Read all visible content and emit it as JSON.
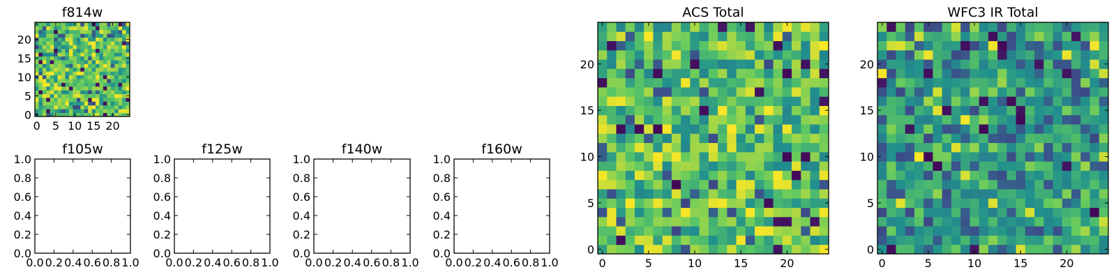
{
  "figure": {
    "colormap": "viridis",
    "colormap_stops": [
      "#440154",
      "#3b528b",
      "#21908d",
      "#5dc962",
      "#fde725"
    ]
  },
  "chart_data": [
    {
      "type": "heatmap",
      "id": "f814w",
      "title": "f814w",
      "xlim": [
        -0.5,
        24.5
      ],
      "ylim": [
        -0.5,
        24.5
      ],
      "xticks": [
        0,
        5,
        10,
        15,
        20
      ],
      "yticks": [
        0,
        5,
        10,
        15,
        20
      ],
      "xtick_labels": [
        "0",
        "5",
        "10",
        "15",
        "20"
      ],
      "ytick_labels": [
        "0",
        "5",
        "10",
        "15",
        "20"
      ],
      "grid_size": 25,
      "seed": 11,
      "value_profile": "bright"
    },
    {
      "type": "empty",
      "id": "f105w",
      "title": "f105w",
      "xlim": [
        0,
        1
      ],
      "ylim": [
        0,
        1
      ],
      "xtick_labels": [
        "0.0",
        "0.2",
        "0.4",
        "0.6",
        "0.8",
        "1.0"
      ],
      "ytick_labels": [
        "0.0",
        "0.2",
        "0.4",
        "0.6",
        "0.8",
        "1.0"
      ]
    },
    {
      "type": "empty",
      "id": "f125w",
      "title": "f125w",
      "xlim": [
        0,
        1
      ],
      "ylim": [
        0,
        1
      ],
      "xtick_labels": [
        "0.0",
        "0.2",
        "0.4",
        "0.6",
        "0.8",
        "1.0"
      ],
      "ytick_labels": [
        "0.0",
        "0.2",
        "0.4",
        "0.6",
        "0.8",
        "1.0"
      ]
    },
    {
      "type": "empty",
      "id": "f140w",
      "title": "f140w",
      "xlim": [
        0,
        1
      ],
      "ylim": [
        0,
        1
      ],
      "xtick_labels": [
        "0.0",
        "0.2",
        "0.4",
        "0.6",
        "0.8",
        "1.0"
      ],
      "ytick_labels": [
        "0.0",
        "0.2",
        "0.4",
        "0.6",
        "0.8",
        "1.0"
      ]
    },
    {
      "type": "empty",
      "id": "f160w",
      "title": "f160w",
      "xlim": [
        0,
        1
      ],
      "ylim": [
        0,
        1
      ],
      "xtick_labels": [
        "0.0",
        "0.2",
        "0.4",
        "0.6",
        "0.8",
        "1.0"
      ],
      "ytick_labels": [
        "0.0",
        "0.2",
        "0.4",
        "0.6",
        "0.8",
        "1.0"
      ]
    },
    {
      "type": "heatmap",
      "id": "acs-total",
      "title": "ACS Total",
      "xlim": [
        -0.5,
        24.5
      ],
      "ylim": [
        -0.5,
        24.5
      ],
      "xticks": [
        0,
        5,
        10,
        15,
        20
      ],
      "yticks": [
        0,
        5,
        10,
        15,
        20
      ],
      "xtick_labels": [
        "0",
        "5",
        "10",
        "15",
        "20"
      ],
      "ytick_labels": [
        "0",
        "5",
        "10",
        "15",
        "20"
      ],
      "grid_size": 25,
      "seed": 29,
      "value_profile": "bright"
    },
    {
      "type": "heatmap",
      "id": "wfc3-ir-total",
      "title": "WFC3 IR Total",
      "xlim": [
        -0.5,
        24.5
      ],
      "ylim": [
        -0.5,
        24.5
      ],
      "xticks": [
        0,
        5,
        10,
        15,
        20
      ],
      "yticks": [
        0,
        5,
        10,
        15,
        20
      ],
      "xtick_labels": [
        "0",
        "5",
        "10",
        "15",
        "20"
      ],
      "ytick_labels": [
        "0",
        "5",
        "10",
        "15",
        "20"
      ],
      "grid_size": 25,
      "seed": 47,
      "value_profile": "mid"
    }
  ]
}
